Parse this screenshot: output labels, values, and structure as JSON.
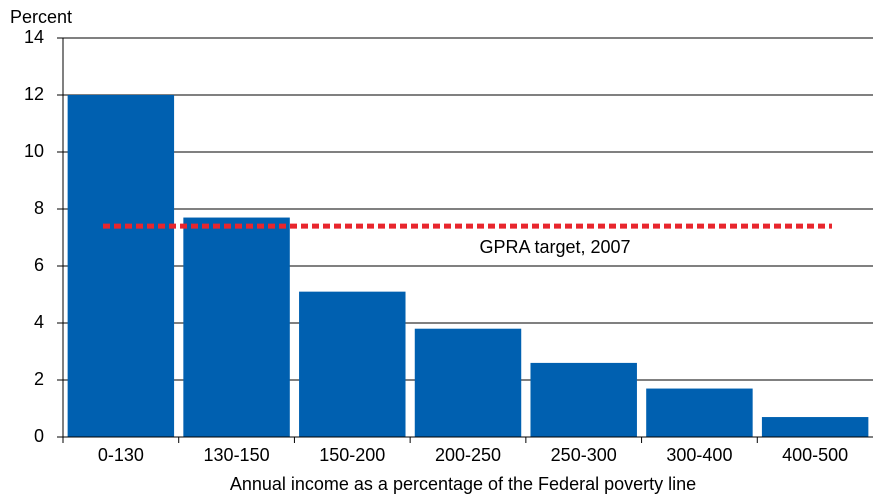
{
  "chart_data": {
    "type": "bar",
    "y_axis_label": "Percent",
    "x_axis_label": "Annual income as a percentage of the Federal poverty line",
    "categories": [
      "0-130",
      "130-150",
      "150-200",
      "200-250",
      "250-300",
      "300-400",
      "400-500"
    ],
    "values": [
      12,
      7.7,
      5.1,
      3.8,
      2.6,
      1.7,
      0.7
    ],
    "color": "#0060b0",
    "ylim": [
      0,
      14
    ],
    "yticks": [
      0,
      2,
      4,
      6,
      8,
      10,
      12,
      14
    ],
    "grid": true,
    "reference_line": {
      "value": 7.4,
      "label": "GPRA target, 2007",
      "color": "#e8262d"
    }
  }
}
